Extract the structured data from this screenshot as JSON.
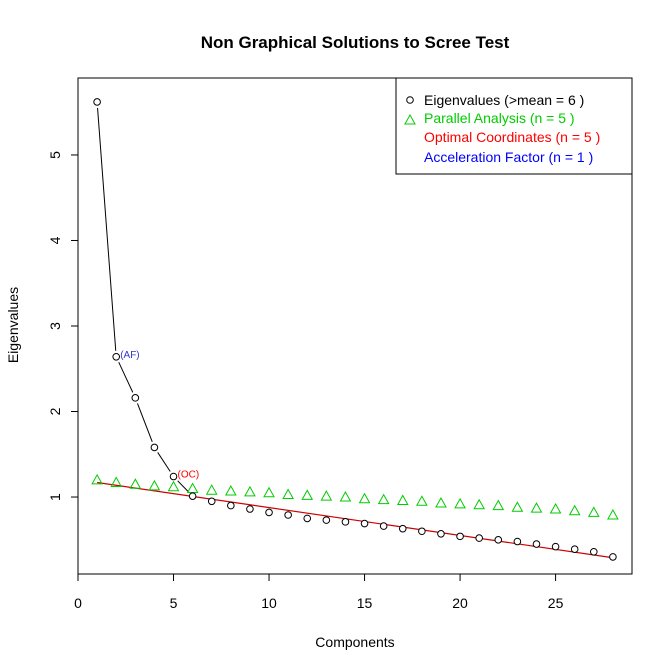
{
  "chart_data": {
    "type": "scatter",
    "title": "Non Graphical Solutions to Scree Test",
    "xlabel": "Components",
    "ylabel": "Eigenvalues",
    "xlim": [
      0,
      29
    ],
    "ylim": [
      0.1,
      5.9
    ],
    "x_ticks": [
      0,
      5,
      10,
      15,
      20,
      25
    ],
    "y_ticks": [
      1,
      2,
      3,
      4,
      5
    ],
    "grid": false,
    "legend_position": "top-right",
    "x": [
      1,
      2,
      3,
      4,
      5,
      6,
      7,
      8,
      9,
      10,
      11,
      12,
      13,
      14,
      15,
      16,
      17,
      18,
      19,
      20,
      21,
      22,
      23,
      24,
      25,
      26,
      27,
      28
    ],
    "series": [
      {
        "name": "Eigenvalues (>mean  =  6 )",
        "marker": "circle",
        "color": "#000000",
        "values": [
          5.62,
          2.64,
          2.16,
          1.58,
          1.24,
          1.01,
          0.95,
          0.9,
          0.86,
          0.82,
          0.79,
          0.75,
          0.73,
          0.71,
          0.69,
          0.66,
          0.63,
          0.6,
          0.57,
          0.54,
          0.52,
          0.5,
          0.48,
          0.45,
          0.42,
          0.39,
          0.36,
          0.3
        ]
      },
      {
        "name": "Parallel Analysis (n =  5 )",
        "marker": "triangle",
        "color": "#00cc00",
        "values": [
          1.2,
          1.17,
          1.15,
          1.13,
          1.12,
          1.1,
          1.08,
          1.07,
          1.06,
          1.05,
          1.03,
          1.02,
          1.01,
          1.0,
          0.98,
          0.97,
          0.96,
          0.95,
          0.93,
          0.92,
          0.91,
          0.9,
          0.88,
          0.87,
          0.86,
          0.84,
          0.82,
          0.79
        ]
      }
    ],
    "legend_extra": [
      {
        "name": "Optimal Coordinates (n =  5 )",
        "color": "#ff0000"
      },
      {
        "name": "Acceleration Factor (n =  1 )",
        "color": "#0000ff"
      }
    ],
    "scree_line_points": [
      1,
      2,
      3,
      4,
      5,
      6
    ],
    "oc_line": {
      "from": [
        1,
        1.17
      ],
      "to": [
        28,
        0.29
      ],
      "color": "#cc0000"
    },
    "annotations": [
      {
        "text": "(AF)",
        "x": 2,
        "y": 2.64,
        "color": "#3333cc"
      },
      {
        "text": "(OC)",
        "x": 5,
        "y": 1.24,
        "color": "#ff0000"
      }
    ]
  }
}
